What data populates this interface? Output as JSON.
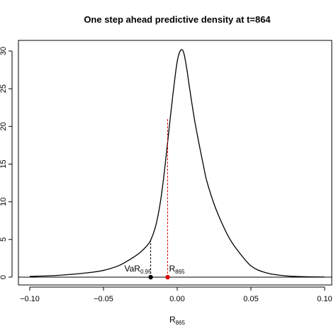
{
  "chart_data": {
    "type": "line",
    "title": "One step ahead predictive density at t=864",
    "xlabel": {
      "main": "R",
      "sub": "865"
    },
    "ylabel": "",
    "xlim": [
      -0.1,
      0.1
    ],
    "ylim": [
      0,
      30
    ],
    "x_ticks": [
      -0.1,
      -0.05,
      0.0,
      0.05,
      0.1
    ],
    "x_tick_labels": [
      "−0.10",
      "−0.05",
      "0.00",
      "0.05",
      "0.10"
    ],
    "y_ticks": [
      0,
      5,
      10,
      15,
      20,
      25,
      30
    ],
    "y_tick_labels": [
      "0",
      "5",
      "10",
      "15",
      "20",
      "25",
      "30"
    ],
    "grid": false,
    "baseline_y": 0,
    "series": [
      {
        "color": "#000000",
        "x": [
          -0.1,
          -0.08,
          -0.06,
          -0.05,
          -0.04,
          -0.035,
          -0.03,
          -0.025,
          -0.02,
          -0.018,
          -0.015,
          -0.013,
          -0.011,
          -0.009,
          -0.007,
          -0.005,
          -0.003,
          -0.001,
          0.0,
          0.001,
          0.002,
          0.003,
          0.004,
          0.005,
          0.006,
          0.007,
          0.008,
          0.01,
          0.012,
          0.015,
          0.018,
          0.02,
          0.025,
          0.03,
          0.035,
          0.04,
          0.05,
          0.06,
          0.07,
          0.08,
          0.09,
          0.1
        ],
        "y": [
          0.1,
          0.25,
          0.6,
          0.9,
          1.5,
          2.0,
          2.6,
          3.3,
          4.3,
          4.9,
          6.5,
          8.2,
          10.5,
          13.5,
          17.0,
          20.6,
          24.1,
          27.3,
          28.6,
          29.5,
          30.0,
          30.2,
          30.0,
          29.3,
          28.2,
          27.0,
          25.6,
          23.0,
          20.6,
          17.5,
          14.6,
          12.8,
          9.7,
          7.3,
          5.3,
          3.8,
          1.5,
          0.6,
          0.25,
          0.1,
          0.05,
          0.02
        ]
      }
    ],
    "markers": [
      {
        "name": "VaR",
        "label_main": "VaR",
        "label_sub": "0.95",
        "x": -0.018,
        "y": 0,
        "line_to_y": 4.9,
        "line_style": "dashed",
        "color": "#000000"
      },
      {
        "name": "R865",
        "label_main": "R",
        "label_sub": "865",
        "x": -0.0065,
        "y": 0,
        "line_to_y": 21.0,
        "line_style": "dashed",
        "color": "#dd0000"
      }
    ]
  }
}
